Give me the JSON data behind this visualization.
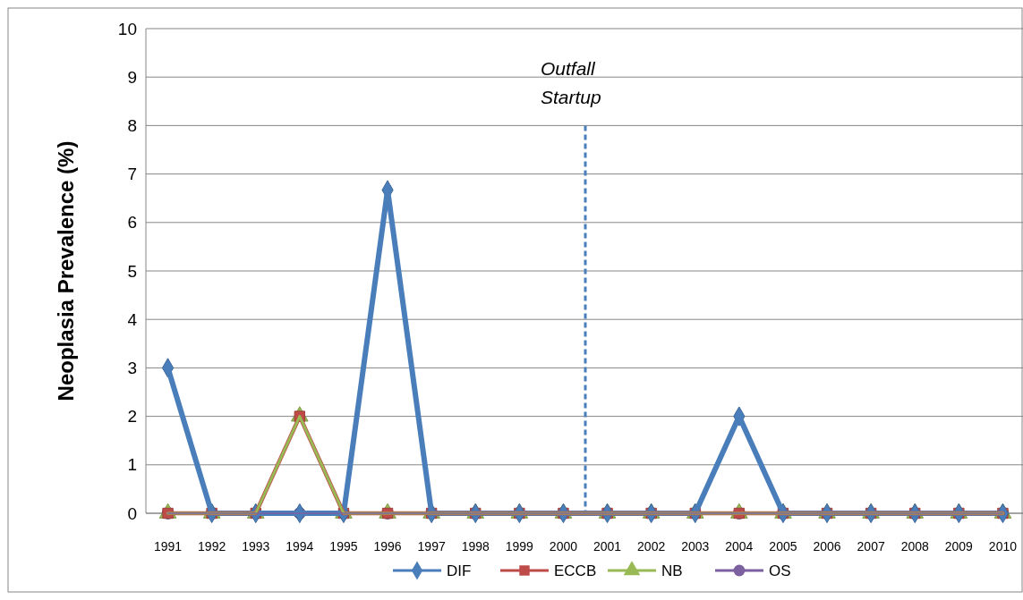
{
  "chart_data": {
    "type": "line",
    "ylabel": "Neoplasia Prevalence (%)",
    "x": [
      1991,
      1992,
      1993,
      1994,
      1995,
      1996,
      1997,
      1998,
      1999,
      2000,
      2001,
      2002,
      2003,
      2004,
      2005,
      2006,
      2007,
      2008,
      2009,
      2010
    ],
    "xlim": [
      1990.5,
      2010.5
    ],
    "xticks": [
      1991,
      1992,
      1993,
      1994,
      1995,
      1996,
      1997,
      1998,
      1999,
      2000,
      2001,
      2002,
      2003,
      2004,
      2005,
      2006,
      2007,
      2008,
      2009,
      2010
    ],
    "ylim": [
      0,
      10
    ],
    "yticks": [
      0,
      1,
      2,
      3,
      4,
      5,
      6,
      7,
      8,
      9,
      10
    ],
    "grid": "y",
    "legend": "bottom",
    "series": [
      {
        "name": "DIF",
        "color": "#4a7ebb",
        "marker": "diamond",
        "values": [
          3,
          0,
          0,
          0,
          0,
          6.67,
          0,
          0,
          0,
          0,
          0,
          0,
          0,
          2,
          0,
          0,
          0,
          0,
          0,
          0
        ]
      },
      {
        "name": "ECCB",
        "color": "#be4b48",
        "marker": "square",
        "values": [
          0,
          0,
          0,
          2,
          0,
          0,
          0,
          0,
          0,
          0,
          0,
          0,
          0,
          0,
          0,
          0,
          0,
          0,
          0,
          0
        ]
      },
      {
        "name": "NB",
        "color": "#98b954",
        "marker": "triangle",
        "values": [
          0,
          0,
          0,
          2,
          0,
          0,
          0,
          0,
          0,
          0,
          0,
          0,
          0,
          0,
          0,
          0,
          0,
          0,
          0,
          0
        ]
      },
      {
        "name": "OS",
        "color": "#7d60a0",
        "marker": "circle",
        "values": [
          0,
          0,
          0,
          0,
          0,
          0,
          0,
          0,
          0,
          0,
          0,
          0,
          0,
          0,
          0,
          0,
          0,
          0,
          0,
          0
        ]
      }
    ],
    "ref_lines": [
      {
        "axis": "x",
        "value": 2000.5,
        "label": "Outfall Startup",
        "color": "#4a7ebb",
        "line_style": "dashed"
      }
    ]
  }
}
